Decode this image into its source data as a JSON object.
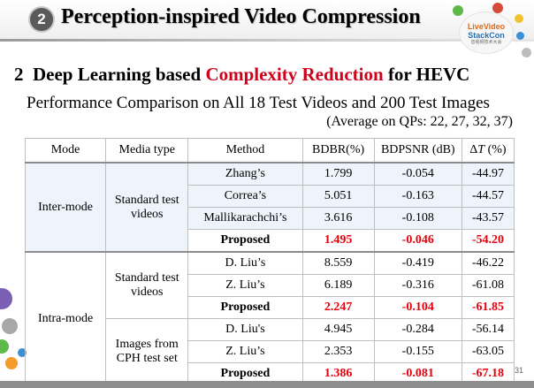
{
  "header": {
    "section_number": "2",
    "title": "Perception-inspired Video Compression",
    "logo": {
      "line1": "LiveVideo",
      "line2": "StackCon",
      "line3": "音视频技术大会"
    }
  },
  "subtitle": {
    "number": "2",
    "prefix": "Deep Learning based",
    "highlight": "Complexity Reduction",
    "suffix": "for HEVC"
  },
  "performance_title": "Performance Comparison on All 18 Test Videos and 200 Test Images",
  "average_note": "(Average on QPs: 22, 27, 32, 37)",
  "table": {
    "headers": {
      "mode": "Mode",
      "media": "Media type",
      "method": "Method",
      "bdbr": "BDBR(%)",
      "bdpsnr": "BDPSNR (dB)",
      "dt_prefix": "Δ",
      "dt_var": "T",
      "dt_suffix": " (%)"
    },
    "inter": {
      "mode": "Inter-mode",
      "media_line1": "Standard test",
      "media_line2": "videos",
      "rows": [
        {
          "method": "Zhang’s",
          "bdbr": "1.799",
          "bdpsnr": "-0.054",
          "dt": "-44.97"
        },
        {
          "method": "Correa’s",
          "bdbr": "5.051",
          "bdpsnr": "-0.163",
          "dt": "-44.57"
        },
        {
          "method": "Mallikarachchi’s",
          "bdbr": "3.616",
          "bdpsnr": "-0.108",
          "dt": "-43.57"
        },
        {
          "method": "Proposed",
          "bdbr": "1.495",
          "bdpsnr": "-0.046",
          "dt": "-54.20"
        }
      ]
    },
    "intra": {
      "mode": "Intra-mode",
      "video_media_line1": "Standard test",
      "video_media_line2": "videos",
      "video_rows": [
        {
          "method": "D. Liu’s",
          "bdbr": "8.559",
          "bdpsnr": "-0.419",
          "dt": "-46.22"
        },
        {
          "method": "Z. Liu’s",
          "bdbr": "6.189",
          "bdpsnr": "-0.316",
          "dt": "-61.08"
        },
        {
          "method": "Proposed",
          "bdbr": "2.247",
          "bdpsnr": "-0.104",
          "dt": "-61.85"
        }
      ],
      "image_media_line1": "Images from",
      "image_media_line2": "CPH test set",
      "image_rows": [
        {
          "method": "D. Liu's",
          "bdbr": "4.945",
          "bdpsnr": "-0.284",
          "dt": "-56.14"
        },
        {
          "method": "Z. Liu’s",
          "bdbr": "2.353",
          "bdpsnr": "-0.155",
          "dt": "-63.05"
        },
        {
          "method": "Proposed",
          "bdbr": "1.386",
          "bdpsnr": "-0.081",
          "dt": "-67.18"
        }
      ]
    }
  },
  "colors": {
    "highlight_red": "#d0021b",
    "proposed_red": "#e8000d",
    "table_fill": "#eef4fb"
  },
  "page_number": "31"
}
